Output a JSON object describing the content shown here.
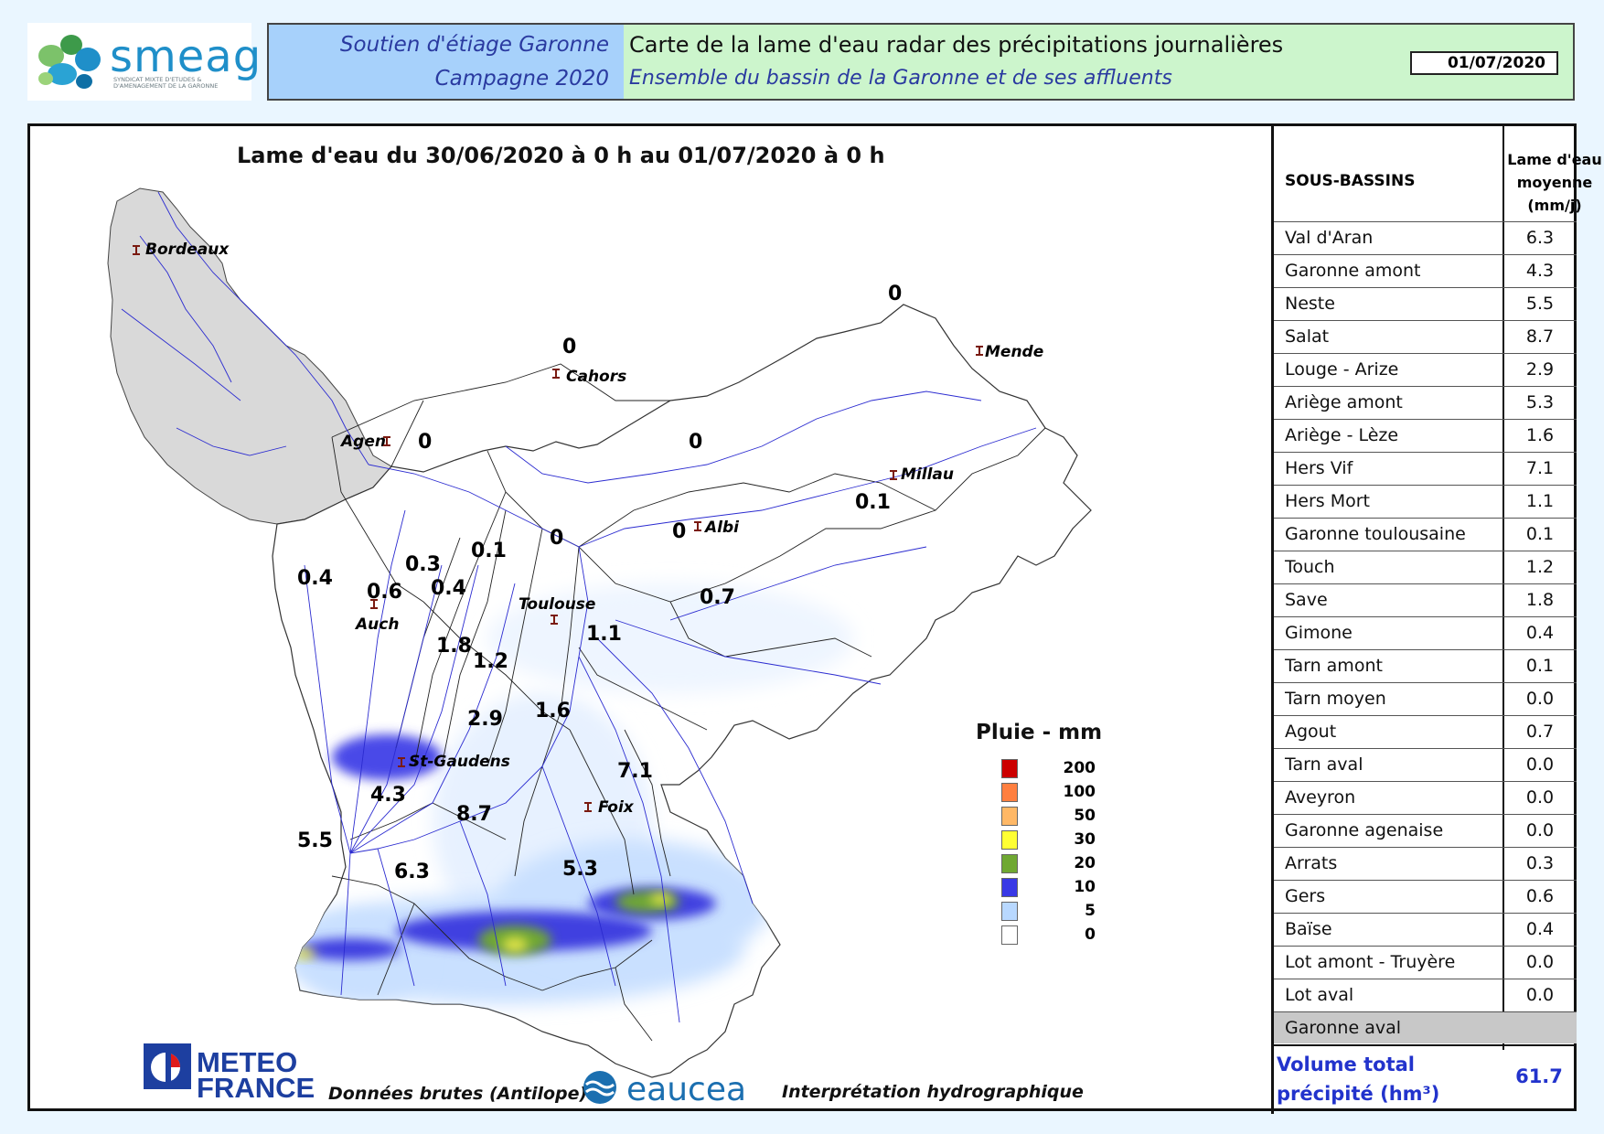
{
  "header": {
    "logo_name": "smeag",
    "logo_subtitle": "SYNDICAT MIXTE D'ETUDES & D'AMENAGEMENT DE LA GARONNE",
    "left_line1": "Soutien d'étiage Garonne",
    "left_line2": "Campagne 2020",
    "right_line1": "Carte de la lame d'eau radar des précipitations journalières",
    "right_line2": "Ensemble du bassin de la Garonne et de ses affluents",
    "date": "01/07/2020"
  },
  "map": {
    "title": "Lame d'eau du 30/06/2020 à 0 h au 01/07/2020 à 0 h",
    "cities": [
      {
        "name": "Bordeaux"
      },
      {
        "name": "Cahors"
      },
      {
        "name": "Mende"
      },
      {
        "name": "Agen"
      },
      {
        "name": "Millau"
      },
      {
        "name": "Albi"
      },
      {
        "name": "Toulouse"
      },
      {
        "name": "Auch"
      },
      {
        "name": "St-Gaudens"
      },
      {
        "name": "Foix"
      }
    ],
    "values": [
      "0",
      "0",
      "0",
      "0",
      "0.1",
      "0",
      "0",
      "0.7",
      "0.4",
      "0.6",
      "0.3",
      "0.1",
      "0.4",
      "1.1",
      "1.8",
      "1.2",
      "2.9",
      "1.6",
      "4.3",
      "8.7",
      "7.1",
      "5.5",
      "6.3",
      "5.3"
    ]
  },
  "legend": {
    "title": "Pluie - mm",
    "items": [
      {
        "label": "200",
        "color": "#cc0000"
      },
      {
        "label": "100",
        "color": "#ff7f3f"
      },
      {
        "label": "50",
        "color": "#ffb866"
      },
      {
        "label": "30",
        "color": "#ffff33"
      },
      {
        "label": "20",
        "color": "#6fa832"
      },
      {
        "label": "10",
        "color": "#3838e6"
      },
      {
        "label": "5",
        "color": "#b8d8ff"
      },
      {
        "label": "0",
        "color": "#ffffff"
      }
    ]
  },
  "table": {
    "col1": "SOUS-BASSINS",
    "col2": "Lame d'eau moyenne (mm/j)",
    "rows": [
      {
        "name": "Val d'Aran",
        "value": "6.3"
      },
      {
        "name": "Garonne amont",
        "value": "4.3"
      },
      {
        "name": "Neste",
        "value": "5.5"
      },
      {
        "name": "Salat",
        "value": "8.7"
      },
      {
        "name": "Louge - Arize",
        "value": "2.9"
      },
      {
        "name": "Ariège amont",
        "value": "5.3"
      },
      {
        "name": "Ariège - Lèze",
        "value": "1.6"
      },
      {
        "name": "Hers Vif",
        "value": "7.1"
      },
      {
        "name": "Hers Mort",
        "value": "1.1"
      },
      {
        "name": "Garonne toulousaine",
        "value": "0.1"
      },
      {
        "name": "Touch",
        "value": "1.2"
      },
      {
        "name": "Save",
        "value": "1.8"
      },
      {
        "name": "Gimone",
        "value": "0.4"
      },
      {
        "name": "Tarn amont",
        "value": "0.1"
      },
      {
        "name": "Tarn moyen",
        "value": "0.0"
      },
      {
        "name": "Agout",
        "value": "0.7"
      },
      {
        "name": "Tarn aval",
        "value": "0.0"
      },
      {
        "name": "Aveyron",
        "value": "0.0"
      },
      {
        "name": "Garonne agenaise",
        "value": "0.0"
      },
      {
        "name": "Arrats",
        "value": "0.3"
      },
      {
        "name": "Gers",
        "value": "0.6"
      },
      {
        "name": "Baïse",
        "value": "0.4"
      },
      {
        "name": "Lot amont - Truyère",
        "value": "0.0"
      },
      {
        "name": "Lot aval",
        "value": "0.0"
      },
      {
        "name": "Garonne aval",
        "value": ""
      }
    ],
    "volume_label": "Volume total précipité (hm³)",
    "volume_value": "61.7"
  },
  "footer": {
    "meteo_line1": "METEO",
    "meteo_line2": "FRANCE",
    "donnees": "Données brutes (Antilope)",
    "eaucea": "eaucea",
    "interpretation": "Interprétation hydrographique"
  }
}
